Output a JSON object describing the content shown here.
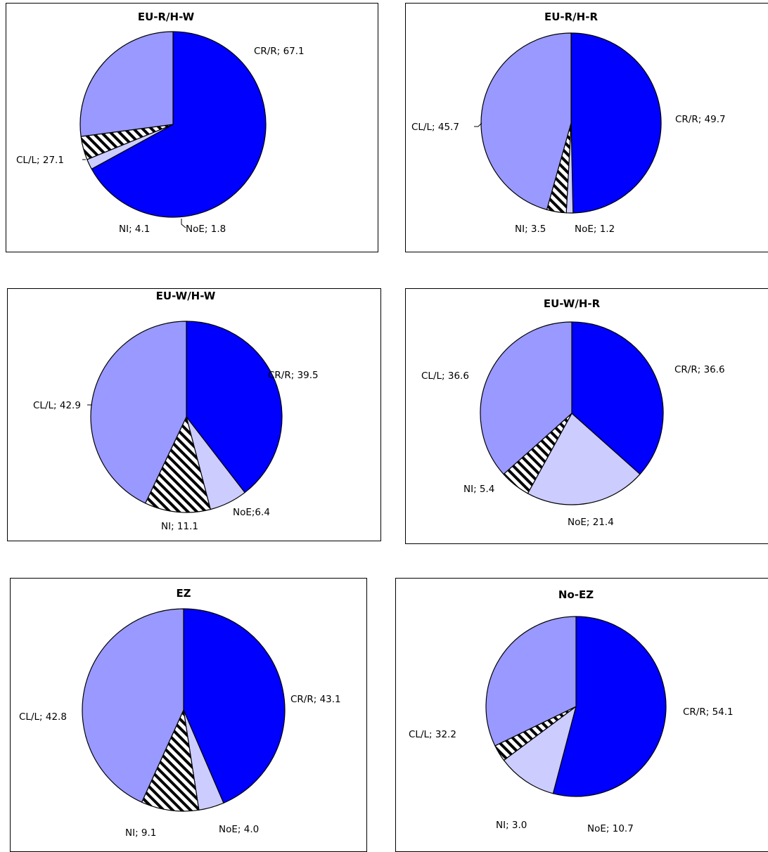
{
  "colors": {
    "CR/R": "#0000ff",
    "CL/L": "#9999ff",
    "NI": "hatch",
    "NoE": "#ccccff",
    "outline": "#000000"
  },
  "chart_data": [
    {
      "type": "pie",
      "title": "EU-R/H-W",
      "slices": [
        {
          "name": "CR/R",
          "value": 67.1,
          "label": "CR/R; 67.1"
        },
        {
          "name": "NoE",
          "value": 1.8,
          "label": "NoE; 1.8"
        },
        {
          "name": "NI",
          "value": 4.1,
          "label": "NI; 4.1"
        },
        {
          "name": "CL/L",
          "value": 27.1,
          "label": "CL/L; 27.1"
        }
      ]
    },
    {
      "type": "pie",
      "title": "EU-R/H-R",
      "slices": [
        {
          "name": "CR/R",
          "value": 49.7,
          "label": "CR/R; 49.7"
        },
        {
          "name": "NoE",
          "value": 1.2,
          "label": "NoE; 1.2"
        },
        {
          "name": "NI",
          "value": 3.5,
          "label": "NI; 3.5"
        },
        {
          "name": "CL/L",
          "value": 45.7,
          "label": "CL/L; 45.7"
        }
      ]
    },
    {
      "type": "pie",
      "title": "EU-W/H-W",
      "slices": [
        {
          "name": "CR/R",
          "value": 39.5,
          "label": "CR/R; 39.5"
        },
        {
          "name": "NoE",
          "value": 6.4,
          "label": "NoE;6.4"
        },
        {
          "name": "NI",
          "value": 11.1,
          "label": "NI; 11.1"
        },
        {
          "name": "CL/L",
          "value": 42.9,
          "label": "CL/L; 42.9"
        }
      ]
    },
    {
      "type": "pie",
      "title": "EU-W/H-R",
      "slices": [
        {
          "name": "CR/R",
          "value": 36.6,
          "label": "CR/R; 36.6"
        },
        {
          "name": "NoE",
          "value": 21.4,
          "label": "NoE; 21.4"
        },
        {
          "name": "NI",
          "value": 5.4,
          "label": "NI; 5.4"
        },
        {
          "name": "CL/L",
          "value": 36.6,
          "label": "CL/L; 36.6"
        }
      ]
    },
    {
      "type": "pie",
      "title": "EZ",
      "slices": [
        {
          "name": "CR/R",
          "value": 43.1,
          "label": "CR/R;  43.1"
        },
        {
          "name": "NoE",
          "value": 4.0,
          "label": "NoE; 4.0"
        },
        {
          "name": "NI",
          "value": 9.1,
          "label": "NI; 9.1"
        },
        {
          "name": "CL/L",
          "value": 42.8,
          "label": "CL/L; 42.8"
        }
      ]
    },
    {
      "type": "pie",
      "title": "No-EZ",
      "slices": [
        {
          "name": "CR/R",
          "value": 54.1,
          "label": "CR/R; 54.1"
        },
        {
          "name": "NoE",
          "value": 10.7,
          "label": "NoE; 10.7"
        },
        {
          "name": "NI",
          "value": 3.0,
          "label": "NI; 3.0"
        },
        {
          "name": "CL/L",
          "value": 32.2,
          "label": "CL/L; 32.2"
        }
      ]
    }
  ]
}
